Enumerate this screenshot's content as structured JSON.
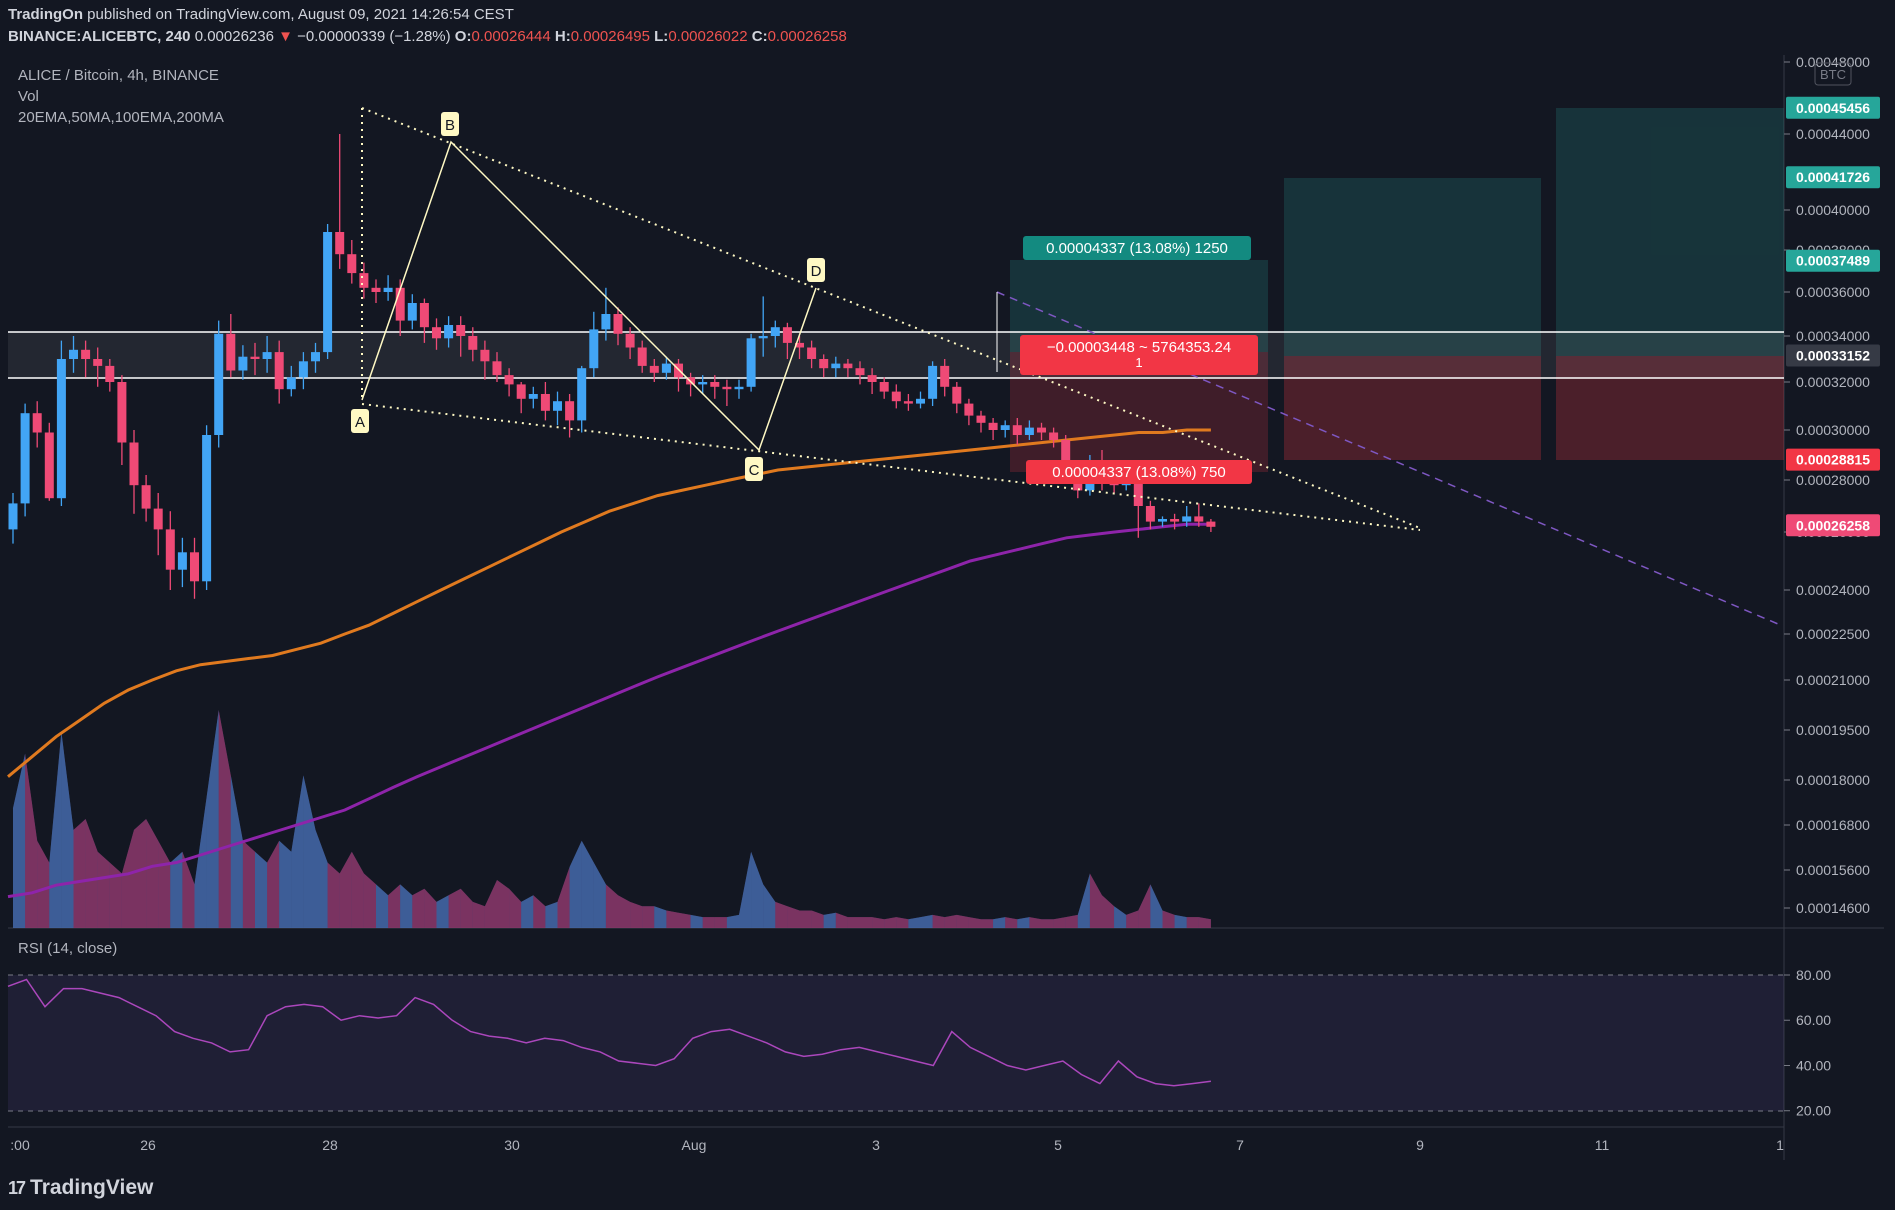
{
  "header": {
    "publisher": "TradingOn",
    "published_text": "published on TradingView.com, August 09, 2021 14:26:54 CEST",
    "symbol": "BINANCE:ALICEBTC, 240",
    "last": "0.00026236",
    "change_arrow": "▼",
    "change": "−0.00000339 (−1.28%)",
    "o_label": "O:",
    "o_val": "0.00026444",
    "h_label": "H:",
    "h_val": "0.00026495",
    "l_label": "L:",
    "l_val": "0.00026022",
    "c_label": "C:",
    "c_val": "0.00026258"
  },
  "legend": {
    "title": "ALICE / Bitcoin, 4h, BINANCE",
    "vol": "Vol",
    "mas": "20EMA,50MA,100EMA,200MA",
    "rsi": "RSI (14, close)"
  },
  "footer": {
    "brand": "TradingView",
    "logo": "17"
  },
  "colors": {
    "up": "#42a5f5",
    "down": "#ef4a76",
    "bg": "#131722",
    "ema100": "#e07a1f",
    "ma200": "#8e24aa",
    "rsi": "#ab47bc",
    "pattern": "#fff9c4",
    "target": "#26a69a",
    "stop": "#f23645"
  },
  "chart_data": [
    {
      "type": "candlestick",
      "title": "ALICE / Bitcoin, 4h, BINANCE",
      "ylabel": "BTC",
      "y_ticks": [
        "0.00048000",
        "0.00044000",
        "0.00040000",
        "0.00038000",
        "0.00036000",
        "0.00034000",
        "0.00032000",
        "0.00030000",
        "0.00028000",
        "0.00026000",
        "0.00024000",
        "0.00022500",
        "0.00021000",
        "0.00019500",
        "0.00018000",
        "0.00016800",
        "0.00015600",
        "0.00014600"
      ],
      "x_ticks": [
        ":00",
        "26",
        "28",
        "30",
        "Aug",
        "3",
        "5",
        "7",
        "9",
        "11",
        "1"
      ],
      "price_labels": [
        {
          "value": "0.00045456",
          "color": "#26a69a"
        },
        {
          "value": "0.00041726",
          "color": "#26a69a"
        },
        {
          "value": "0.00037489",
          "color": "#26a69a"
        },
        {
          "value": "0.00033152",
          "color": "#363a45"
        },
        {
          "value": "0.00028815",
          "color": "#f23645"
        },
        {
          "value": "0.00026258",
          "color": "#ef4a76"
        }
      ],
      "candles": [
        [
          0.000261,
          0.000271,
          0.000256,
          0.000275
        ],
        [
          0.000271,
          0.000307,
          0.000266,
          0.000311
        ],
        [
          0.000307,
          0.000299,
          0.000293,
          0.000312
        ],
        [
          0.000299,
          0.000273,
          0.000272,
          0.000303
        ],
        [
          0.000273,
          0.00033,
          0.00027,
          0.000338
        ],
        [
          0.00033,
          0.000334,
          0.000324,
          0.00034
        ],
        [
          0.000334,
          0.00033,
          0.000322,
          0.000338
        ],
        [
          0.00033,
          0.000327,
          0.000318,
          0.000335
        ],
        [
          0.000327,
          0.00032,
          0.000316,
          0.00033
        ],
        [
          0.00032,
          0.000295,
          0.000286,
          0.000323
        ],
        [
          0.000295,
          0.000278,
          0.000267,
          0.0003
        ],
        [
          0.000278,
          0.000269,
          0.000264,
          0.000282
        ],
        [
          0.000269,
          0.000261,
          0.000252,
          0.000275
        ],
        [
          0.000261,
          0.000247,
          0.00024,
          0.000268
        ],
        [
          0.000247,
          0.000253,
          0.000241,
          0.000258
        ],
        [
          0.000253,
          0.000243,
          0.000237,
          0.000258
        ],
        [
          0.000243,
          0.000298,
          0.00024,
          0.000302
        ],
        [
          0.000298,
          0.000341,
          0.000293,
          0.000347
        ],
        [
          0.000341,
          0.000325,
          0.000322,
          0.00035
        ],
        [
          0.000325,
          0.000331,
          0.000321,
          0.000336
        ],
        [
          0.000331,
          0.00033,
          0.000323,
          0.000337
        ],
        [
          0.00033,
          0.000333,
          0.000324,
          0.00034
        ],
        [
          0.000333,
          0.000317,
          0.000311,
          0.000338
        ],
        [
          0.000317,
          0.000322,
          0.000314,
          0.000327
        ],
        [
          0.000322,
          0.000329,
          0.000317,
          0.000333
        ],
        [
          0.000329,
          0.000333,
          0.000324,
          0.000337
        ],
        [
          0.000333,
          0.000389,
          0.00033,
          0.000393
        ],
        [
          0.000389,
          0.000378,
          0.000371,
          0.00044
        ],
        [
          0.000378,
          0.000369,
          0.000364,
          0.000385
        ],
        [
          0.000369,
          0.000362,
          0.000357,
          0.000374
        ],
        [
          0.000362,
          0.00036,
          0.000355,
          0.000366
        ],
        [
          0.00036,
          0.000362,
          0.000356,
          0.000368
        ],
        [
          0.000362,
          0.000347,
          0.00034,
          0.000366
        ],
        [
          0.000347,
          0.000355,
          0.000343,
          0.000359
        ],
        [
          0.000355,
          0.000344,
          0.000337,
          0.000357
        ],
        [
          0.000344,
          0.000339,
          0.000334,
          0.000348
        ],
        [
          0.000339,
          0.000345,
          0.000335,
          0.000349
        ],
        [
          0.000345,
          0.00034,
          0.000331,
          0.000349
        ],
        [
          0.00034,
          0.000334,
          0.000329,
          0.000344
        ],
        [
          0.000334,
          0.000329,
          0.000321,
          0.000338
        ],
        [
          0.000329,
          0.000323,
          0.00032,
          0.000333
        ],
        [
          0.000323,
          0.000319,
          0.000314,
          0.000326
        ],
        [
          0.000319,
          0.000313,
          0.000307,
          0.00032
        ],
        [
          0.000313,
          0.000315,
          0.000309,
          0.000318
        ],
        [
          0.000315,
          0.000308,
          0.000304,
          0.00032
        ],
        [
          0.000308,
          0.000312,
          0.000302,
          0.000316
        ],
        [
          0.000312,
          0.000304,
          0.000297,
          0.000315
        ],
        [
          0.000304,
          0.000326,
          0.000299,
          0.000327
        ],
        [
          0.000326,
          0.000343,
          0.000322,
          0.000351
        ],
        [
          0.000343,
          0.00035,
          0.000338,
          0.000362
        ],
        [
          0.00035,
          0.000341,
          0.000336,
          0.000353
        ],
        [
          0.000341,
          0.000335,
          0.00033,
          0.000344
        ],
        [
          0.000335,
          0.000327,
          0.000324,
          0.000338
        ],
        [
          0.000327,
          0.000324,
          0.00032,
          0.00033
        ],
        [
          0.000324,
          0.000328,
          0.000321,
          0.000331
        ],
        [
          0.000328,
          0.000322,
          0.000316,
          0.00033
        ],
        [
          0.000322,
          0.000319,
          0.000314,
          0.000324
        ],
        [
          0.000319,
          0.00032,
          0.000315,
          0.000323
        ],
        [
          0.00032,
          0.000318,
          0.000313,
          0.000323
        ],
        [
          0.000318,
          0.000317,
          0.00031,
          0.000321
        ],
        [
          0.000317,
          0.000318,
          0.000313,
          0.000321
        ],
        [
          0.000318,
          0.000339,
          0.000316,
          0.000341
        ],
        [
          0.000339,
          0.00034,
          0.000331,
          0.000358
        ],
        [
          0.00034,
          0.000344,
          0.000335,
          0.000347
        ],
        [
          0.000344,
          0.000337,
          0.00033,
          0.000346
        ],
        [
          0.000337,
          0.000335,
          0.00033,
          0.00034
        ],
        [
          0.000335,
          0.00033,
          0.000326,
          0.000338
        ],
        [
          0.00033,
          0.000326,
          0.000322,
          0.000332
        ],
        [
          0.000326,
          0.000328,
          0.000322,
          0.000331
        ],
        [
          0.000328,
          0.000326,
          0.000322,
          0.00033
        ],
        [
          0.000326,
          0.000323,
          0.000319,
          0.000329
        ],
        [
          0.000323,
          0.00032,
          0.000315,
          0.000326
        ],
        [
          0.00032,
          0.000316,
          0.000313,
          0.000322
        ],
        [
          0.000316,
          0.000312,
          0.000309,
          0.000319
        ],
        [
          0.000312,
          0.000311,
          0.000308,
          0.000315
        ],
        [
          0.000311,
          0.000313,
          0.000309,
          0.000316
        ],
        [
          0.000313,
          0.000327,
          0.00031,
          0.000329
        ],
        [
          0.000327,
          0.000318,
          0.000314,
          0.00033
        ],
        [
          0.000318,
          0.000311,
          0.000307,
          0.00032
        ],
        [
          0.000311,
          0.000306,
          0.000302,
          0.000313
        ],
        [
          0.000306,
          0.000303,
          0.000299,
          0.000308
        ],
        [
          0.000303,
          0.0003,
          0.000296,
          0.000305
        ],
        [
          0.0003,
          0.000302,
          0.000297,
          0.000304
        ],
        [
          0.000302,
          0.000298,
          0.000294,
          0.000305
        ],
        [
          0.000298,
          0.000301,
          0.000296,
          0.000304
        ],
        [
          0.000301,
          0.000299,
          0.000296,
          0.000303
        ],
        [
          0.000299,
          0.000296,
          0.000293,
          0.000301
        ],
        [
          0.000296,
          0.000284,
          0.00028,
          0.000298
        ],
        [
          0.000284,
          0.000276,
          0.000273,
          0.000287
        ],
        [
          0.000276,
          0.000288,
          0.000274,
          0.00029
        ],
        [
          0.000288,
          0.000281,
          0.000276,
          0.000292
        ],
        [
          0.000281,
          0.000278,
          0.000275,
          0.000284
        ],
        [
          0.000278,
          0.00028,
          0.000276,
          0.000282
        ],
        [
          0.00028,
          0.00027,
          0.000258,
          0.000282
        ],
        [
          0.00027,
          0.000264,
          0.000261,
          0.000272
        ],
        [
          0.000264,
          0.000265,
          0.000262,
          0.000266
        ],
        [
          0.000265,
          0.000264,
          0.000261,
          0.000267
        ],
        [
          0.000264,
          0.000266,
          0.000262,
          0.00027
        ],
        [
          0.000266,
          0.000264,
          0.000262,
          0.000271
        ],
        [
          0.000264,
          0.000262,
          0.00026,
          0.000265
        ]
      ],
      "volume": [
        0.55,
        0.8,
        0.4,
        0.3,
        0.9,
        0.45,
        0.5,
        0.35,
        0.3,
        0.25,
        0.45,
        0.5,
        0.4,
        0.3,
        0.35,
        0.2,
        0.6,
        1.0,
        0.7,
        0.4,
        0.35,
        0.3,
        0.4,
        0.35,
        0.7,
        0.45,
        0.3,
        0.25,
        0.35,
        0.25,
        0.2,
        0.15,
        0.2,
        0.15,
        0.18,
        0.12,
        0.15,
        0.18,
        0.12,
        0.1,
        0.22,
        0.18,
        0.12,
        0.15,
        0.1,
        0.12,
        0.28,
        0.4,
        0.3,
        0.2,
        0.15,
        0.12,
        0.1,
        0.1,
        0.08,
        0.07,
        0.06,
        0.05,
        0.05,
        0.05,
        0.06,
        0.35,
        0.2,
        0.12,
        0.1,
        0.08,
        0.08,
        0.06,
        0.07,
        0.05,
        0.05,
        0.05,
        0.04,
        0.05,
        0.04,
        0.05,
        0.06,
        0.05,
        0.06,
        0.05,
        0.04,
        0.04,
        0.05,
        0.04,
        0.05,
        0.04,
        0.04,
        0.05,
        0.06,
        0.25,
        0.15,
        0.1,
        0.06,
        0.08,
        0.2,
        0.08,
        0.06,
        0.05,
        0.05,
        0.04
      ],
      "ema100": [
        0.000181,
        0.000187,
        0.000193,
        0.000198,
        0.000203,
        0.000207,
        0.00021,
        0.000213,
        0.000215,
        0.000216,
        0.000217,
        0.000218,
        0.00022,
        0.000222,
        0.000225,
        0.000228,
        0.000232,
        0.000236,
        0.00024,
        0.000244,
        0.000248,
        0.000252,
        0.000256,
        0.00026,
        0.000264,
        0.000268,
        0.000271,
        0.000274,
        0.000276,
        0.000278,
        0.00028,
        0.000282,
        0.000284,
        0.000285,
        0.000286,
        0.000287,
        0.000288,
        0.000289,
        0.00029,
        0.000291,
        0.000292,
        0.000293,
        0.000294,
        0.000295,
        0.000296,
        0.000297,
        0.000298,
        0.000299,
        0.000299,
        0.0003,
        0.0003
      ],
      "ma200": [
        0.000149,
        0.00015,
        0.000152,
        0.000153,
        0.000154,
        0.000155,
        0.000157,
        0.000158,
        0.00016,
        0.000162,
        0.000164,
        0.000166,
        0.000168,
        0.00017,
        0.000172,
        0.000175,
        0.000178,
        0.000181,
        0.000184,
        0.000187,
        0.00019,
        0.000193,
        0.000196,
        0.000199,
        0.000202,
        0.000205,
        0.000208,
        0.000211,
        0.000214,
        0.000217,
        0.00022,
        0.000223,
        0.000226,
        0.000229,
        0.000232,
        0.000235,
        0.000238,
        0.000241,
        0.000244,
        0.000247,
        0.00025,
        0.000252,
        0.000254,
        0.000256,
        0.000258,
        0.000259,
        0.00026,
        0.000261,
        0.000262,
        0.000263,
        0.000263
      ],
      "rsi": [
        75,
        78,
        66,
        74,
        74,
        72,
        70,
        66,
        62,
        55,
        52,
        50,
        46,
        47,
        62,
        66,
        67,
        66,
        60,
        62,
        61,
        62,
        70,
        67,
        60,
        55,
        53,
        52,
        50,
        52,
        51,
        48,
        46,
        42,
        41,
        40,
        43,
        52,
        55,
        56,
        53,
        50,
        46,
        44,
        45,
        47,
        48,
        46,
        44,
        42,
        40,
        55,
        48,
        44,
        40,
        38,
        40,
        42,
        36,
        32,
        42,
        35,
        32,
        31,
        32,
        33
      ]
    }
  ],
  "annotations": {
    "pattern_points": [
      "A",
      "B",
      "C",
      "D"
    ],
    "target_label": "0.00004337 (13.08%) 1250",
    "stop_label": "0.00004337 (13.08%) 750",
    "measure_label_line1": "−0.00003448 ~ 5764353.24",
    "measure_label_line2": "1",
    "rsi_ticks": [
      "80.00",
      "60.00",
      "40.00",
      "20.00"
    ],
    "currency_badge": "BTC"
  }
}
